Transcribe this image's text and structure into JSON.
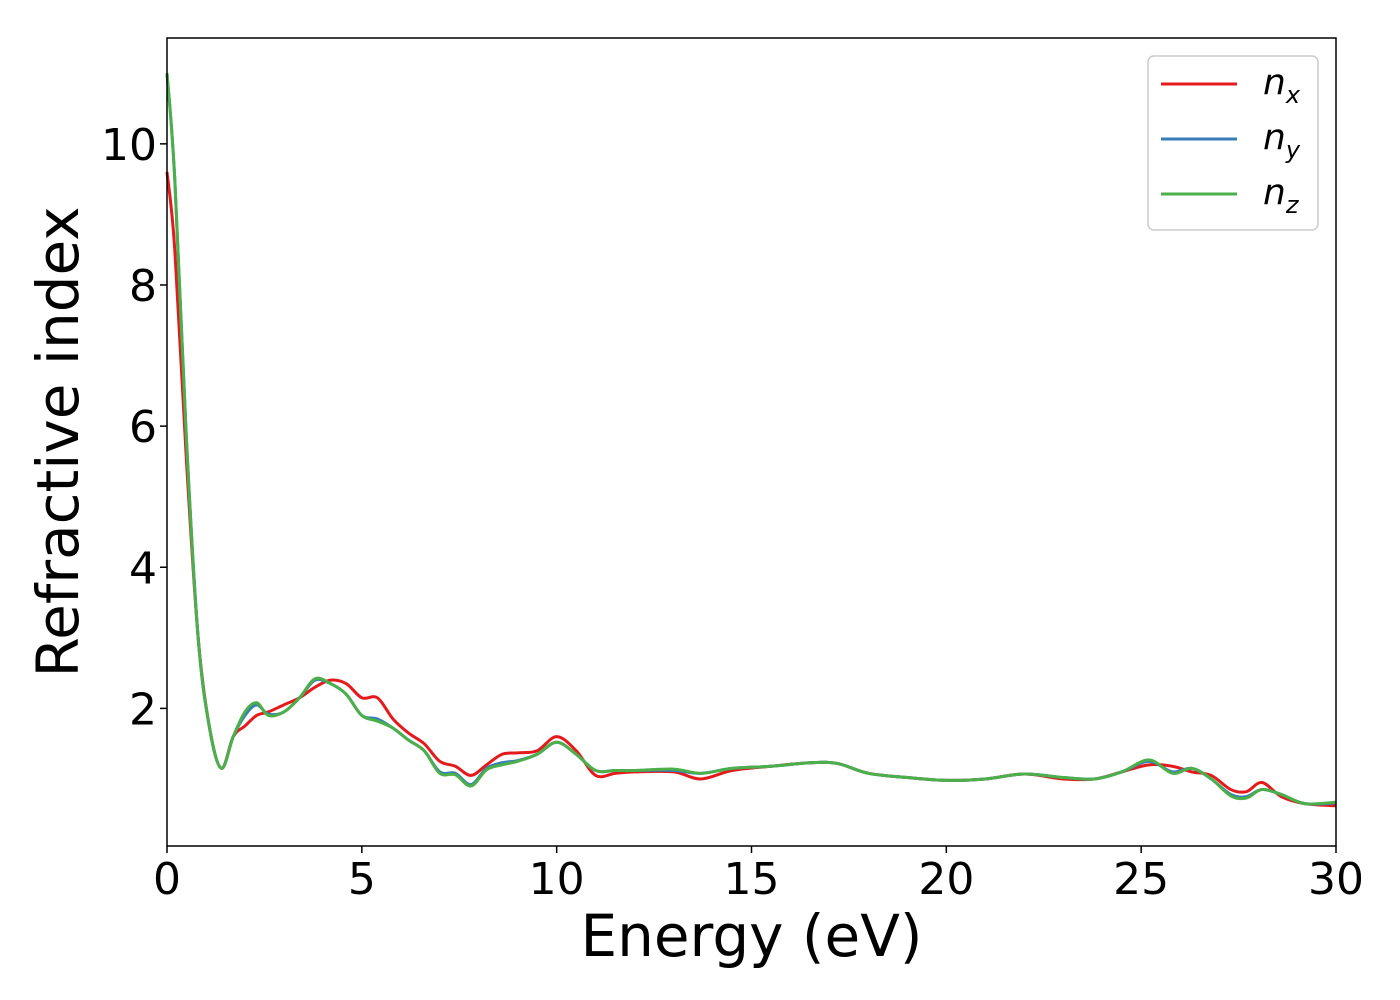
{
  "chart_data": {
    "type": "line",
    "xlabel": "Energy (eV)",
    "ylabel": "Refractive index",
    "xlim": [
      0,
      30
    ],
    "ylim": [
      0.05,
      11.5
    ],
    "xticks": [
      0,
      5,
      10,
      15,
      20,
      25,
      30
    ],
    "yticks": [
      2,
      4,
      6,
      8,
      10
    ],
    "xtick_labels": [
      "0",
      "5",
      "10",
      "15",
      "20",
      "25",
      "30"
    ],
    "ytick_labels": [
      "2",
      "4",
      "6",
      "8",
      "10"
    ],
    "grid": false,
    "legend_position": "top-right",
    "x": [
      0,
      0.2,
      0.5,
      0.8,
      1.1,
      1.4,
      1.7,
      2.0,
      2.3,
      2.6,
      3.0,
      3.4,
      3.8,
      4.2,
      4.6,
      5.0,
      5.4,
      5.8,
      6.2,
      6.6,
      7.0,
      7.4,
      7.8,
      8.2,
      8.6,
      9.0,
      9.5,
      10.0,
      10.5,
      11.0,
      11.5,
      12.0,
      13.0,
      13.7,
      14.5,
      15.5,
      16.5,
      17.2,
      18.0,
      19.0,
      20.0,
      21.0,
      22.0,
      23.0,
      23.8,
      24.5,
      25.2,
      25.8,
      26.3,
      26.8,
      27.3,
      27.7,
      28.1,
      28.6,
      29.2,
      30.0
    ],
    "series": [
      {
        "label_base": "n",
        "label_sub": "x",
        "color": "#e41a1c",
        "values": [
          9.6,
          8.5,
          5.5,
          3.0,
          1.7,
          1.15,
          1.6,
          1.75,
          1.9,
          1.95,
          2.05,
          2.15,
          2.3,
          2.4,
          2.35,
          2.15,
          2.15,
          1.85,
          1.65,
          1.5,
          1.25,
          1.18,
          1.05,
          1.2,
          1.35,
          1.37,
          1.4,
          1.6,
          1.4,
          1.05,
          1.08,
          1.1,
          1.1,
          1.0,
          1.12,
          1.18,
          1.23,
          1.22,
          1.08,
          1.02,
          0.98,
          1.0,
          1.07,
          1.0,
          1.0,
          1.1,
          1.2,
          1.18,
          1.1,
          1.05,
          0.85,
          0.82,
          0.95,
          0.75,
          0.65,
          0.62
        ]
      },
      {
        "label_base": "n",
        "label_sub": "y",
        "color": "#377eb8",
        "values": [
          11.0,
          9.5,
          5.8,
          3.0,
          1.7,
          1.15,
          1.6,
          1.9,
          2.05,
          1.92,
          1.95,
          2.15,
          2.4,
          2.35,
          2.2,
          1.9,
          1.85,
          1.72,
          1.55,
          1.4,
          1.1,
          1.08,
          0.92,
          1.15,
          1.23,
          1.26,
          1.35,
          1.52,
          1.35,
          1.12,
          1.12,
          1.12,
          1.12,
          1.08,
          1.15,
          1.18,
          1.23,
          1.22,
          1.08,
          1.02,
          0.98,
          1.0,
          1.07,
          1.02,
          1.0,
          1.1,
          1.25,
          1.1,
          1.15,
          1.0,
          0.78,
          0.75,
          0.85,
          0.78,
          0.65,
          0.66
        ]
      },
      {
        "label_base": "n",
        "label_sub": "z",
        "color": "#4daf4a",
        "values": [
          11.0,
          9.5,
          5.8,
          3.0,
          1.7,
          1.15,
          1.6,
          1.95,
          2.08,
          1.9,
          1.95,
          2.15,
          2.42,
          2.35,
          2.2,
          1.9,
          1.82,
          1.72,
          1.55,
          1.4,
          1.08,
          1.06,
          0.9,
          1.13,
          1.2,
          1.25,
          1.35,
          1.52,
          1.35,
          1.12,
          1.12,
          1.12,
          1.14,
          1.08,
          1.15,
          1.18,
          1.23,
          1.22,
          1.08,
          1.02,
          0.98,
          1.0,
          1.07,
          1.02,
          1.0,
          1.1,
          1.27,
          1.08,
          1.15,
          1.0,
          0.76,
          0.73,
          0.85,
          0.78,
          0.65,
          0.67
        ]
      }
    ]
  }
}
